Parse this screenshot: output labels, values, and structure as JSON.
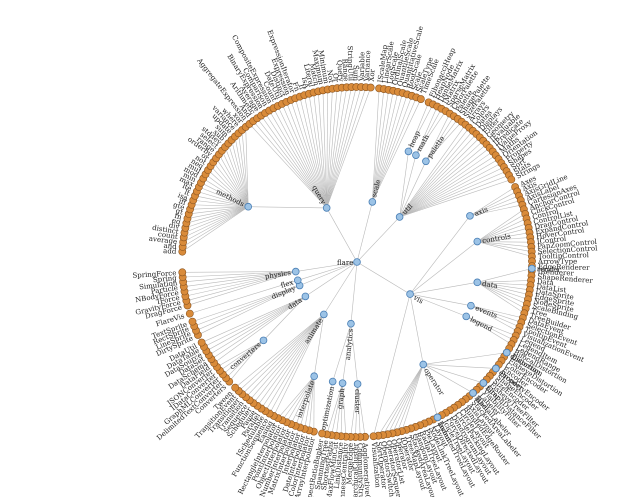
{
  "root": "flare",
  "colors": {
    "inner_node": "#9cc3e6",
    "leaf_node": "#d98b3a",
    "link": "#b9b9b9"
  },
  "branches": [
    {
      "name": "query",
      "children": [
        {
          "name": "methods",
          "leaves": [
            "add",
            "and",
            "average",
            "count",
            "distinct",
            "div",
            "eq",
            "fn",
            "gt",
            "gte",
            "iff",
            "isa",
            "lt",
            "lte",
            "max",
            "min",
            "mod",
            "mul",
            "neq",
            "not",
            "or",
            "orderby",
            "range",
            "select",
            "stddev",
            "sub",
            "sum",
            "update",
            "variance",
            "where",
            "xor"
          ]
        },
        {
          "name": "",
          "leaves": [
            "AggregateExpression",
            "And",
            "Arithmetic",
            "Average",
            "BinaryExpression",
            "Comparison",
            "CompositeExpression",
            "Count",
            "DateUtil",
            "Distinct",
            "Expression",
            "ExpressionIterator",
            "Fn",
            "If",
            "IsA",
            "Literal",
            "Match",
            "Maximum",
            "Minimum",
            "Not",
            "Or",
            "Query",
            "Range",
            "StringUtil",
            "Sum",
            "Variable",
            "Variance",
            "Xor"
          ]
        }
      ]
    },
    {
      "name": "scale",
      "children": [
        {
          "name": "",
          "leaves": [
            "IScaleMap",
            "LinearScale",
            "LogScale",
            "OrdinalScale",
            "QuantileScale",
            "QuantitativeScale",
            "RootScale",
            "Scale",
            "ScaleType",
            "TimeScale"
          ]
        }
      ]
    },
    {
      "name": "util",
      "children": [
        {
          "name": "heap",
          "leaves": [
            "FibonacciHeap",
            "HeapNode"
          ]
        },
        {
          "name": "math",
          "leaves": [
            "DenseMatrix",
            "IMatrix",
            "SparseMatrix"
          ]
        },
        {
          "name": "palette",
          "leaves": [
            "ColorPalette",
            "Palette",
            "ShapePalette",
            "SizePalette"
          ]
        },
        {
          "name": "",
          "leaves": [
            "Arrays",
            "Colors",
            "Dates",
            "Displays",
            "Filter",
            "Geometry",
            "IEvaluable",
            "IPredicate",
            "IValueProxy",
            "Maths",
            "Orientation",
            "Property",
            "Shapes",
            "Sort",
            "Stats",
            "Strings"
          ]
        }
      ]
    },
    {
      "name": "vis",
      "children": [
        {
          "name": "axis",
          "leaves": [
            "Axes",
            "Axis",
            "AxisGridLine",
            "AxisLabel",
            "CartesianAxes"
          ]
        },
        {
          "name": "controls",
          "leaves": [
            "AnchorControl",
            "ClickControl",
            "Control",
            "ControlList",
            "DragControl",
            "ExpandControl",
            "HoverControl",
            "IControl",
            "PanZoomControl",
            "SelectionControl",
            "TooltipControl"
          ]
        },
        {
          "name": "data",
          "children": [
            {
              "name": "render",
              "leaves": [
                "ArrowType",
                "EdgeRenderer",
                "IRenderer",
                "ShapeRenderer"
              ]
            },
            {
              "name": "",
              "leaves": [
                "Data",
                "DataList",
                "DataSprite",
                "EdgeSprite",
                "NodeSprite",
                "ScaleBinding",
                "Tree",
                "TreeBuilder"
              ]
            }
          ]
        },
        {
          "name": "events",
          "leaves": [
            "DataEvent",
            "SelectionEvent",
            "TooltipEvent",
            "VisualizationEvent"
          ]
        },
        {
          "name": "legend",
          "leaves": [
            "Legend",
            "LegendItem",
            "LegendRange"
          ]
        },
        {
          "name": "operator",
          "children": [
            {
              "name": "distortion",
              "leaves": [
                "BifocalDistortion",
                "Distortion",
                "FisheyeDistortion"
              ]
            },
            {
              "name": "encoder",
              "leaves": [
                "ColorEncoder",
                "Encoder",
                "PropertyEncoder",
                "ShapeEncoder",
                "SizeEncoder"
              ]
            },
            {
              "name": "filter",
              "leaves": [
                "FisheyeTreeFilter",
                "GraphDistanceFilter",
                "VisibilityFilter"
              ]
            },
            {
              "name": "label",
              "leaves": [
                "Labeler",
                "RadialLabeler",
                "StackedAreaLabeler"
              ]
            },
            {
              "name": "layout",
              "leaves": [
                "AxisLayout",
                "BundledEdgeRouter",
                "CircleLayout",
                "CirclePackingLayout",
                "DendrogramLayout",
                "ForceDirectedLayout",
                "IcicleTreeLayout",
                "IndentedTreeLayout",
                "Layout",
                "NodeLinkTreeLayout",
                "PieLayout",
                "RadialTreeLayout",
                "RandomLayout",
                "StackedAreaLayout",
                "TreeMapLayout"
              ]
            },
            {
              "name": "",
              "leaves": [
                "IOperator",
                "Operator",
                "OperatorList",
                "OperatorSequence",
                "OperatorSwitch",
                "SortOperator"
              ]
            }
          ]
        },
        {
          "name": "",
          "leaves": [
            "Visualization"
          ]
        }
      ]
    },
    {
      "name": "analytics",
      "children": [
        {
          "name": "cluster",
          "leaves": [
            "AgglomerativeCluster",
            "CommunityStructure",
            "HierarchicalCluster",
            "MergeEdge"
          ]
        },
        {
          "name": "graph",
          "leaves": [
            "BetweennessCentrality",
            "LinkDistance",
            "MaxFlowMinCut",
            "ShortestPaths",
            "SpanningTree"
          ]
        },
        {
          "name": "optimization",
          "leaves": [
            "AspectRatioBanker"
          ]
        }
      ]
    },
    {
      "name": "animate",
      "children": [
        {
          "name": "interpolate",
          "leaves": [
            "ArrayInterpolator",
            "ColorInterpolator",
            "DateInterpolator",
            "Interpolator",
            "MatrixInterpolator",
            "NumberInterpolator",
            "ObjectInterpolator",
            "PointInterpolator",
            "RectangleInterpolator"
          ]
        },
        {
          "name": "",
          "leaves": [
            "Easing",
            "FunctionSequence",
            "ISchedulable",
            "Parallel",
            "Pause",
            "Scheduler",
            "Sequence",
            "Transition",
            "Transitioner",
            "TransitionEvent",
            "Tween"
          ]
        }
      ]
    },
    {
      "name": "data",
      "children": [
        {
          "name": "converters",
          "leaves": [
            "Converters",
            "DelimitedTextConverter",
            "GraphMLConverter",
            "IDataConverter",
            "JSONConverter"
          ]
        },
        {
          "name": "",
          "leaves": [
            "DataField",
            "DataSchema",
            "DataSet",
            "DataSource",
            "DataTable",
            "DataUtil"
          ]
        }
      ]
    },
    {
      "name": "display",
      "leaves": [
        "DirtySprite",
        "LineSprite",
        "RectSprite",
        "TextSprite"
      ]
    },
    {
      "name": "flex",
      "leaves": [
        "FlareVis"
      ]
    },
    {
      "name": "physics",
      "leaves": [
        "DragForce",
        "GravityForce",
        "IForce",
        "NBodyForce",
        "Particle",
        "Simulation",
        "Spring",
        "SpringForce"
      ]
    }
  ]
}
